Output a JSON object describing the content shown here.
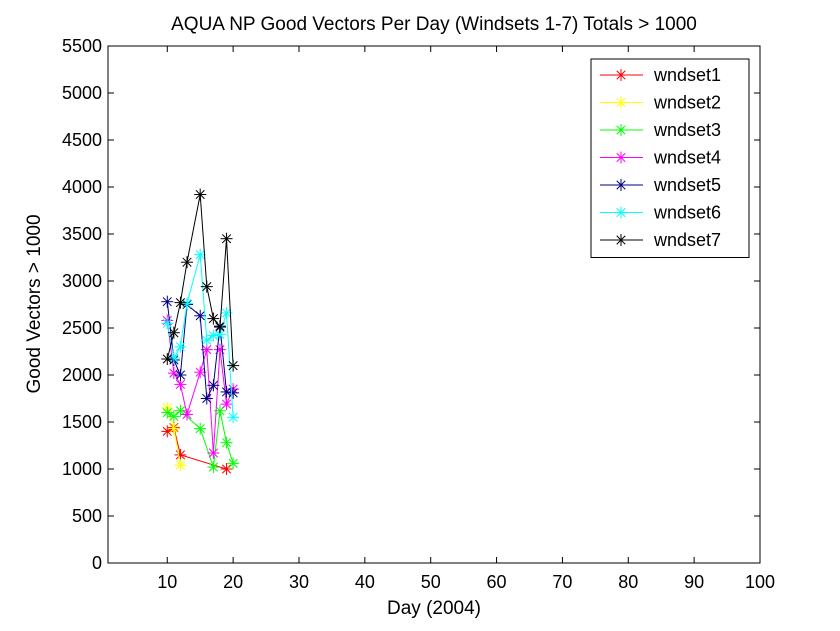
{
  "chart_data": {
    "type": "line",
    "title": "AQUA NP Good Vectors Per Day (Windsets 1-7) Totals > 1000",
    "xlabel": "Day (2004)",
    "ylabel": "Good Vectors > 1000",
    "xlim": [
      1,
      100
    ],
    "ylim": [
      0,
      5500
    ],
    "xticks": [
      10,
      20,
      30,
      40,
      50,
      60,
      70,
      80,
      90,
      100
    ],
    "yticks": [
      0,
      500,
      1000,
      1500,
      2000,
      2500,
      3000,
      3500,
      4000,
      4500,
      5000,
      5500
    ],
    "grid": false,
    "legend_position": "top-right",
    "series": [
      {
        "name": "wndset1",
        "color": "#ff0000",
        "x": [
          10,
          11,
          12,
          19
        ],
        "y": [
          1400,
          1440,
          1150,
          1000
        ]
      },
      {
        "name": "wndset2",
        "color": "#ffff00",
        "x": [
          10,
          11,
          12
        ],
        "y": [
          1650,
          1430,
          1040
        ]
      },
      {
        "name": "wndset3",
        "color": "#00ff00",
        "x": [
          10,
          11,
          12,
          15,
          17,
          18,
          19,
          20
        ],
        "y": [
          1600,
          1560,
          1620,
          1430,
          1020,
          1620,
          1280,
          1060
        ]
      },
      {
        "name": "wndset4",
        "color": "#ff00ff",
        "x": [
          10,
          11,
          12,
          13,
          15,
          16,
          17,
          18,
          19,
          20
        ],
        "y": [
          2580,
          2020,
          1900,
          1580,
          2030,
          2270,
          1170,
          2270,
          1690,
          1850
        ]
      },
      {
        "name": "wndset5",
        "color": "#000080",
        "x": [
          10,
          11,
          12,
          13,
          15,
          16,
          17,
          18,
          19,
          20
        ],
        "y": [
          2780,
          2160,
          2000,
          2750,
          2630,
          1750,
          1890,
          2520,
          1820,
          1810
        ]
      },
      {
        "name": "wndset6",
        "color": "#00ffff",
        "x": [
          10,
          11,
          12,
          13,
          15,
          16,
          17,
          18,
          19,
          20
        ],
        "y": [
          2550,
          2180,
          2300,
          2760,
          3280,
          2370,
          2420,
          2430,
          2660,
          1550
        ]
      },
      {
        "name": "wndset7",
        "color": "#000000",
        "x": [
          10,
          11,
          12,
          13,
          15,
          16,
          17,
          18,
          19,
          20
        ],
        "y": [
          2170,
          2450,
          2770,
          3200,
          3920,
          2940,
          2600,
          2510,
          3450,
          2100
        ]
      }
    ]
  }
}
